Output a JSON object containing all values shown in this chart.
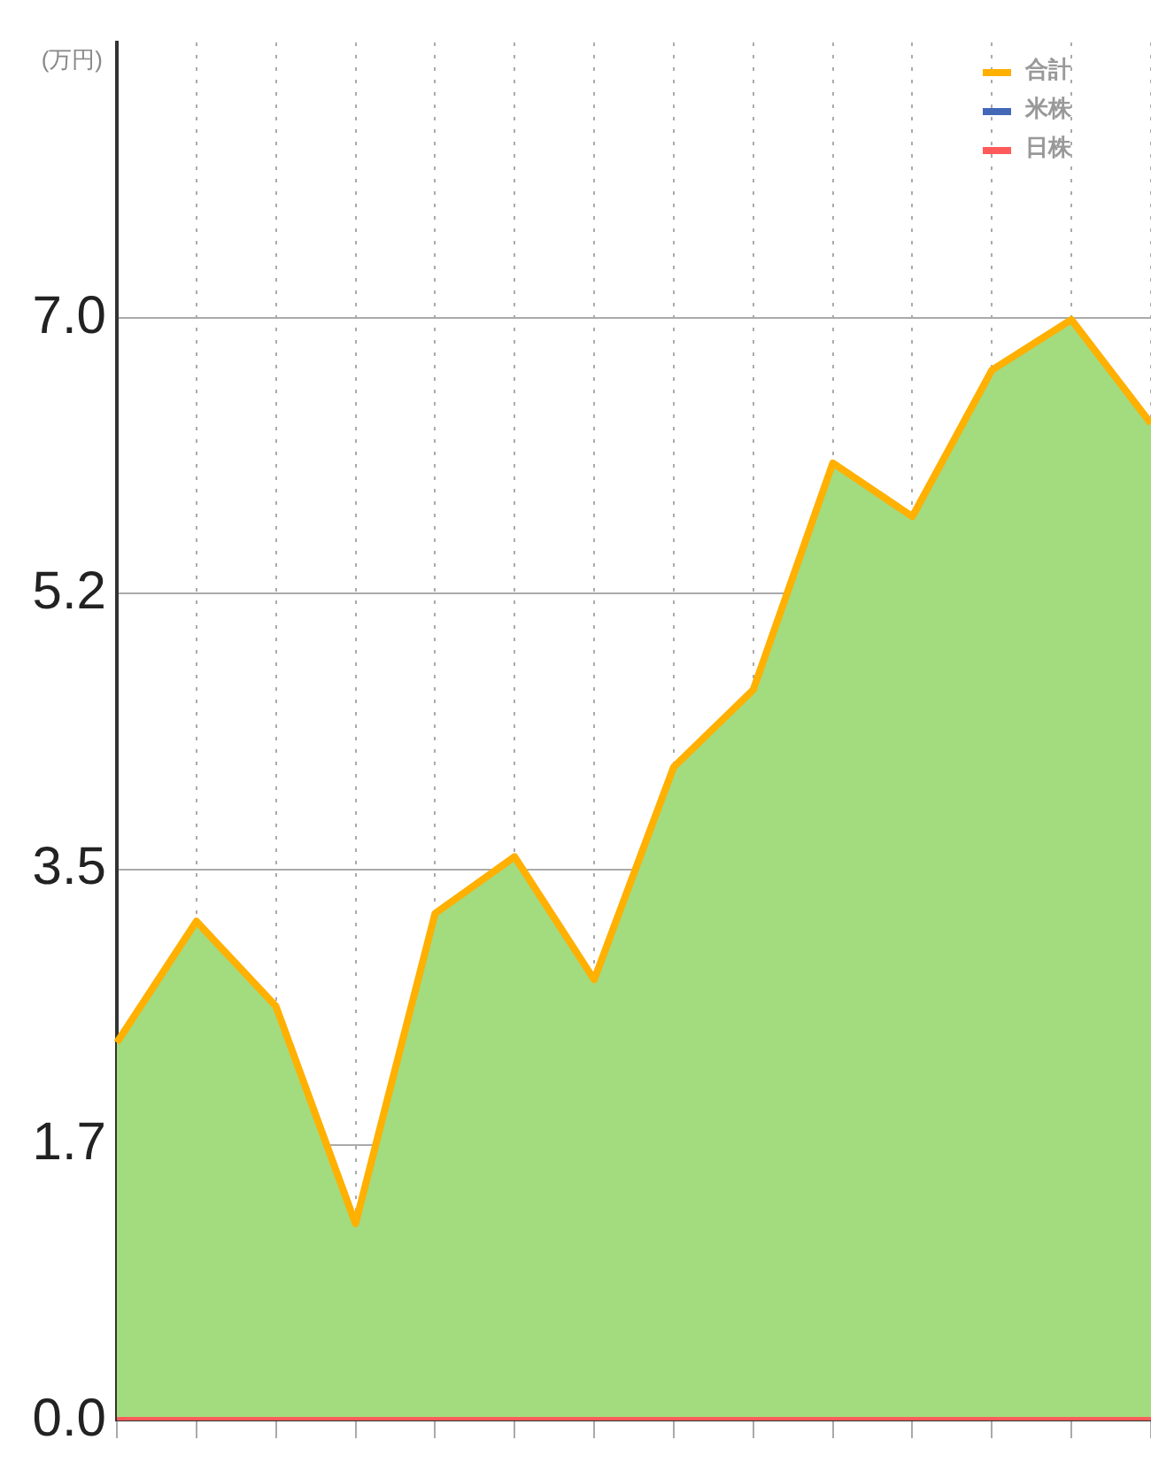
{
  "chart_data": {
    "type": "area",
    "ylabel": "(万円)",
    "categories": [
      null,
      null,
      null,
      null,
      null,
      null,
      null,
      null,
      null,
      null,
      null,
      null,
      null,
      null
    ],
    "series": [
      {
        "name": "合計",
        "color": "#ffb000",
        "values": [
          2.4,
          3.17,
          2.63,
          1.25,
          3.22,
          3.58,
          2.8,
          4.15,
          4.64,
          6.08,
          5.74,
          6.67,
          6.99,
          6.33
        ]
      },
      {
        "name": "米株",
        "color": "#4468b8",
        "type": "line",
        "values": [
          null,
          null,
          null,
          null,
          null,
          null,
          null,
          null,
          null,
          null,
          null,
          null,
          null,
          null
        ]
      },
      {
        "name": "日株",
        "color": "#ff5a5a",
        "type": "line",
        "values": [
          0,
          0,
          0,
          0,
          0,
          0,
          0,
          0,
          0,
          0,
          0,
          0,
          0,
          0
        ]
      }
    ],
    "ylim": [
      0,
      8.75
    ],
    "yticks": [
      {
        "value": 0,
        "label": "0.0"
      },
      {
        "value": 1.75,
        "label": "1.7"
      },
      {
        "value": 3.5,
        "label": "3.5"
      },
      {
        "value": 5.25,
        "label": "5.2"
      },
      {
        "value": 7,
        "label": "7.0"
      }
    ],
    "grid": true,
    "legend": "top right",
    "tick_labels": "y"
  }
}
